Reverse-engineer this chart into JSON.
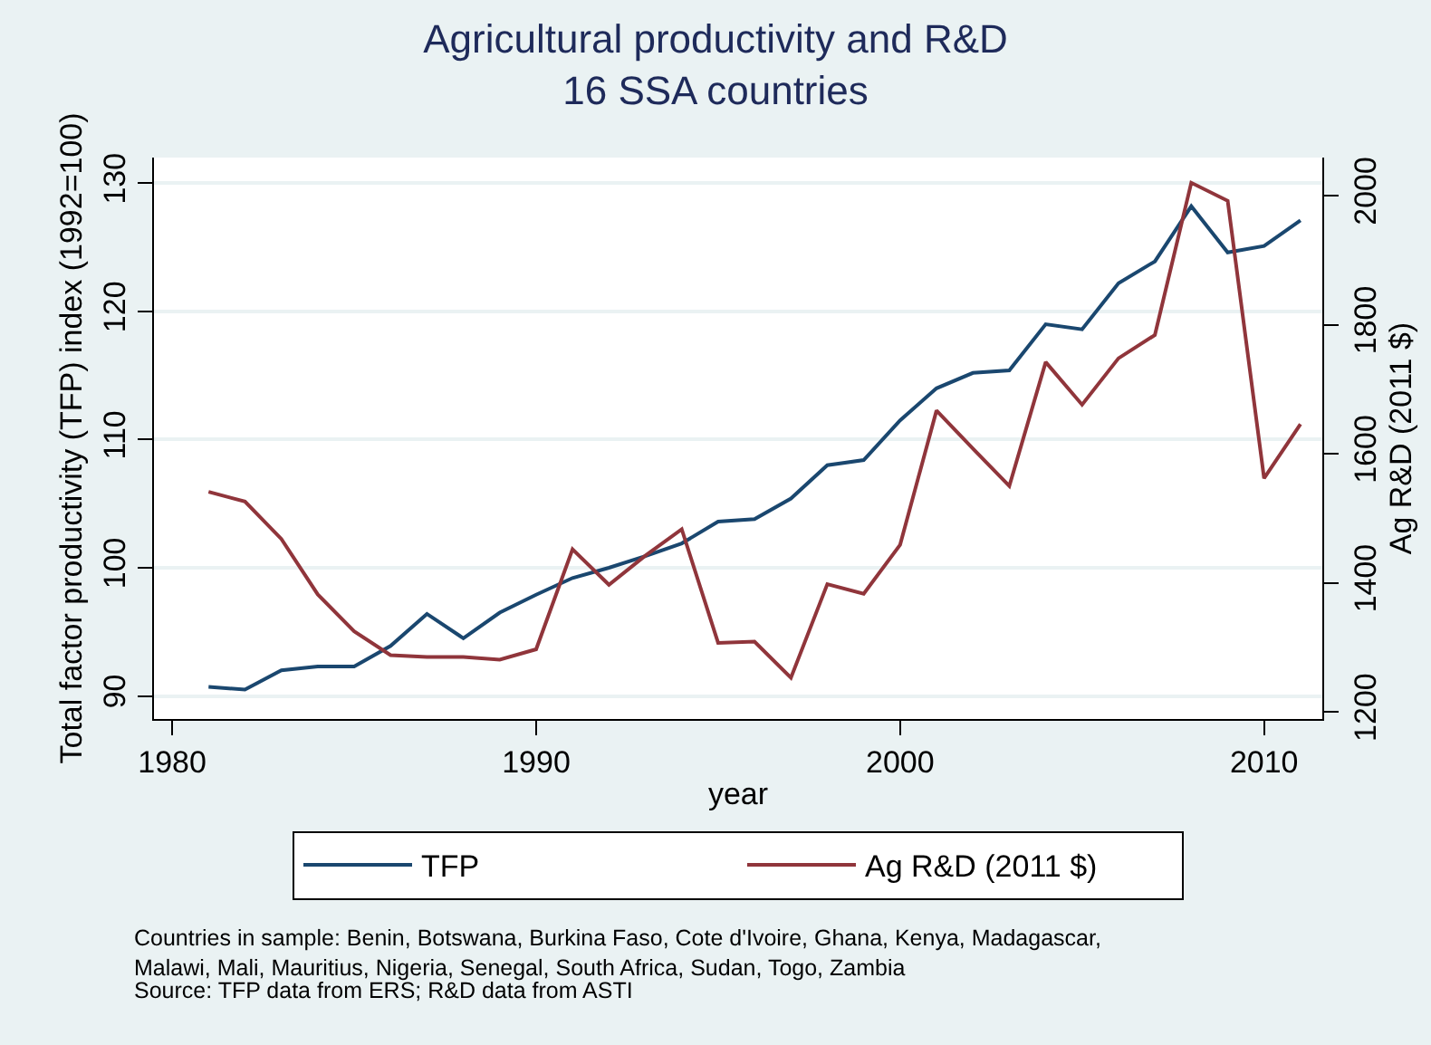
{
  "chart_data": {
    "type": "line",
    "title": "Agricultural productivity and R&D\n16 SSA countries",
    "xlabel": "year",
    "ylabel": "Total factor productivity (TFP) index (1992=100)",
    "y2label": "Ag R&D (2011 $)",
    "x": [
      1981,
      1982,
      1983,
      1984,
      1985,
      1986,
      1987,
      1988,
      1989,
      1990,
      1991,
      1992,
      1993,
      1994,
      1995,
      1996,
      1997,
      1998,
      1999,
      2000,
      2001,
      2002,
      2003,
      2004,
      2005,
      2006,
      2007,
      2008,
      2009,
      2010,
      2011
    ],
    "series": [
      {
        "name": "TFP",
        "color": "#1a476f",
        "values": [
          90.7,
          90.5,
          92.0,
          92.3,
          92.3,
          93.9,
          96.4,
          94.5,
          96.5,
          97.9,
          99.2,
          100,
          100.9,
          101.9,
          103.6,
          103.8,
          105.4,
          108.0,
          108.4,
          111.5,
          114.0,
          115.2,
          115.4,
          119.0,
          118.6,
          122.2,
          123.9,
          128.2,
          124.6,
          125.1,
          127.1
        ]
      },
      {
        "name": "Ag R&D (2011 $)",
        "color": "#90353b",
        "axis": "y2",
        "values": [
          1541,
          1526,
          1468,
          1382,
          1325,
          1288,
          1285,
          1285,
          1281,
          1297,
          1452,
          1397,
          1442,
          1483,
          1307,
          1309,
          1253,
          1398,
          1383,
          1459,
          1667,
          1608,
          1550,
          1742,
          1676,
          1748,
          1784,
          2020,
          1992,
          1562,
          1646
        ]
      }
    ],
    "xlim": [
      1979.5,
      2011.6
    ],
    "xticks": [
      1980,
      1990,
      2000,
      2010
    ],
    "ylim": [
      88.2,
      132
    ],
    "yticks": [
      90,
      100,
      110,
      120,
      130
    ],
    "y2lim": [
      1189,
      2059
    ],
    "y2ticks": [
      1200,
      1400,
      1600,
      1800,
      2000
    ],
    "grid": "y",
    "legend": "bottom",
    "marker": "none",
    "line_style": "solid",
    "annotations": [
      "Countries in sample: Benin, Botswana, Burkina Faso, Cote d'Ivoire, Ghana, Kenya, Madagascar,\nMalawi, Mali, Mauritius, Nigeria, Senegal, South Africa, Sudan, Togo, Zambia",
      "Source: TFP data from ERS; R&D data from ASTI"
    ]
  }
}
